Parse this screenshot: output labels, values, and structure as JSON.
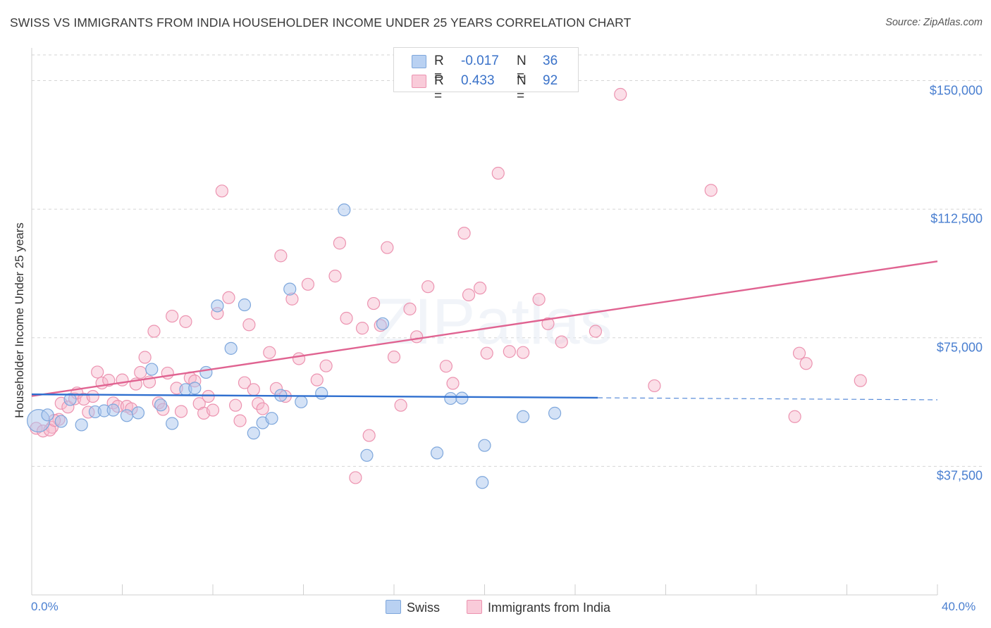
{
  "title": "SWISS VS IMMIGRANTS FROM INDIA HOUSEHOLDER INCOME UNDER 25 YEARS CORRELATION CHART",
  "source": "Source: ZipAtlas.com",
  "colors": {
    "swiss_fill": "#a9c6ee",
    "swiss_stroke": "#7ea7dc",
    "swiss_line": "#2f6fcf",
    "india_fill": "#f6b9cc",
    "india_stroke": "#ec93b0",
    "india_line": "#e06391",
    "grid": "#d5d5d5",
    "tick_label": "#4a7fd0"
  },
  "stats": {
    "swiss": {
      "r_label": "R =",
      "r_value": "-0.017",
      "n_label": "N =",
      "n_value": "36"
    },
    "india": {
      "r_label": "R =",
      "r_value": "0.433",
      "n_label": "N =",
      "n_value": "92"
    }
  },
  "legend": {
    "swiss": "Swiss",
    "india": "Immigrants from India"
  },
  "watermark": "ZIPatlas",
  "chart_data": {
    "type": "scatter",
    "title": "SWISS VS IMMIGRANTS FROM INDIA HOUSEHOLDER INCOME UNDER 25 YEARS CORRELATION CHART",
    "xlabel": "",
    "ylabel": "Householder Income Under 25 years",
    "xlim": [
      0,
      40
    ],
    "ylim": [
      0,
      157500
    ],
    "x_tick_labels": [
      "0.0%",
      "40.0%"
    ],
    "y_ticks": [
      37500,
      75000,
      112500,
      150000
    ],
    "y_tick_labels": [
      "$37,500",
      "$75,000",
      "$112,500",
      "$150,000"
    ],
    "grid": true,
    "series": [
      {
        "name": "Swiss",
        "trend": {
          "x_start": 0,
          "y_start": 58500,
          "x_solid_end": 25,
          "y_solid_end": 57500,
          "x_end": 40,
          "y_end": 56900
        },
        "points": [
          [
            0.3,
            50800
          ],
          [
            0.7,
            52500
          ],
          [
            1.3,
            50600
          ],
          [
            1.7,
            57000
          ],
          [
            2.2,
            49600
          ],
          [
            2.8,
            53400
          ],
          [
            3.2,
            53700
          ],
          [
            3.6,
            53900
          ],
          [
            4.2,
            52300
          ],
          [
            4.7,
            53100
          ],
          [
            5.3,
            65800
          ],
          [
            5.7,
            55400
          ],
          [
            6.2,
            50000
          ],
          [
            6.8,
            59900
          ],
          [
            7.2,
            60300
          ],
          [
            7.7,
            64900
          ],
          [
            8.2,
            84300
          ],
          [
            8.8,
            71900
          ],
          [
            9.4,
            84600
          ],
          [
            9.8,
            47200
          ],
          [
            10.2,
            50200
          ],
          [
            10.6,
            51500
          ],
          [
            11.0,
            58200
          ],
          [
            11.4,
            89200
          ],
          [
            11.9,
            56300
          ],
          [
            12.8,
            58800
          ],
          [
            13.8,
            112300
          ],
          [
            14.8,
            40700
          ],
          [
            15.5,
            79100
          ],
          [
            17.9,
            41400
          ],
          [
            18.5,
            57300
          ],
          [
            19.0,
            57400
          ],
          [
            19.9,
            32800
          ],
          [
            20.0,
            43600
          ],
          [
            21.7,
            52000
          ],
          [
            23.1,
            53000
          ]
        ]
      },
      {
        "name": "Immigrants from India",
        "trend": {
          "x_start": 0,
          "y_start": 58000,
          "x_end": 40,
          "y_end": 97300
        },
        "points": [
          [
            0.2,
            48600
          ],
          [
            0.5,
            47800
          ],
          [
            0.9,
            48900
          ],
          [
            1.2,
            51200
          ],
          [
            1.3,
            55900
          ],
          [
            1.6,
            54800
          ],
          [
            1.9,
            57200
          ],
          [
            2.0,
            58900
          ],
          [
            2.3,
            57100
          ],
          [
            2.5,
            53300
          ],
          [
            2.7,
            57900
          ],
          [
            2.9,
            65000
          ],
          [
            3.1,
            61800
          ],
          [
            3.4,
            62600
          ],
          [
            3.6,
            56000
          ],
          [
            3.8,
            55000
          ],
          [
            4.0,
            62700
          ],
          [
            4.2,
            55000
          ],
          [
            4.4,
            54300
          ],
          [
            4.6,
            61500
          ],
          [
            4.8,
            64900
          ],
          [
            5.0,
            69300
          ],
          [
            5.2,
            62100
          ],
          [
            5.4,
            76900
          ],
          [
            5.6,
            56000
          ],
          [
            5.8,
            54100
          ],
          [
            6.0,
            64700
          ],
          [
            6.2,
            81300
          ],
          [
            6.4,
            60300
          ],
          [
            6.6,
            53500
          ],
          [
            6.8,
            79700
          ],
          [
            7.0,
            63300
          ],
          [
            7.2,
            62400
          ],
          [
            7.4,
            55800
          ],
          [
            7.6,
            53000
          ],
          [
            7.8,
            57900
          ],
          [
            8.0,
            53900
          ],
          [
            8.2,
            82100
          ],
          [
            8.4,
            117800
          ],
          [
            8.7,
            86700
          ],
          [
            9.0,
            55300
          ],
          [
            9.2,
            50800
          ],
          [
            9.4,
            61900
          ],
          [
            9.6,
            78800
          ],
          [
            9.8,
            59900
          ],
          [
            10.0,
            55800
          ],
          [
            10.2,
            54300
          ],
          [
            10.5,
            70700
          ],
          [
            10.8,
            60200
          ],
          [
            11.0,
            98900
          ],
          [
            11.2,
            57900
          ],
          [
            11.5,
            86300
          ],
          [
            11.8,
            68900
          ],
          [
            12.2,
            90600
          ],
          [
            12.6,
            62700
          ],
          [
            13.0,
            66800
          ],
          [
            13.4,
            93000
          ],
          [
            13.6,
            102600
          ],
          [
            13.9,
            80700
          ],
          [
            14.3,
            34200
          ],
          [
            14.6,
            77800
          ],
          [
            14.9,
            46500
          ],
          [
            15.1,
            85000
          ],
          [
            15.4,
            78600
          ],
          [
            15.7,
            101300
          ],
          [
            16.0,
            69400
          ],
          [
            16.3,
            55300
          ],
          [
            16.7,
            83400
          ],
          [
            17.0,
            75300
          ],
          [
            17.5,
            89900
          ],
          [
            18.3,
            66700
          ],
          [
            18.6,
            61700
          ],
          [
            19.1,
            105500
          ],
          [
            19.3,
            87500
          ],
          [
            19.8,
            89500
          ],
          [
            20.1,
            70500
          ],
          [
            20.6,
            123000
          ],
          [
            21.1,
            71000
          ],
          [
            21.7,
            70700
          ],
          [
            22.4,
            86200
          ],
          [
            22.8,
            79100
          ],
          [
            23.4,
            73800
          ],
          [
            24.9,
            76900
          ],
          [
            26.0,
            146000
          ],
          [
            27.5,
            61000
          ],
          [
            30.0,
            118000
          ],
          [
            33.7,
            52000
          ],
          [
            33.9,
            70500
          ],
          [
            34.2,
            67500
          ],
          [
            36.6,
            62500
          ],
          [
            0.8,
            48100
          ],
          [
            1.0,
            50900
          ]
        ]
      }
    ]
  }
}
